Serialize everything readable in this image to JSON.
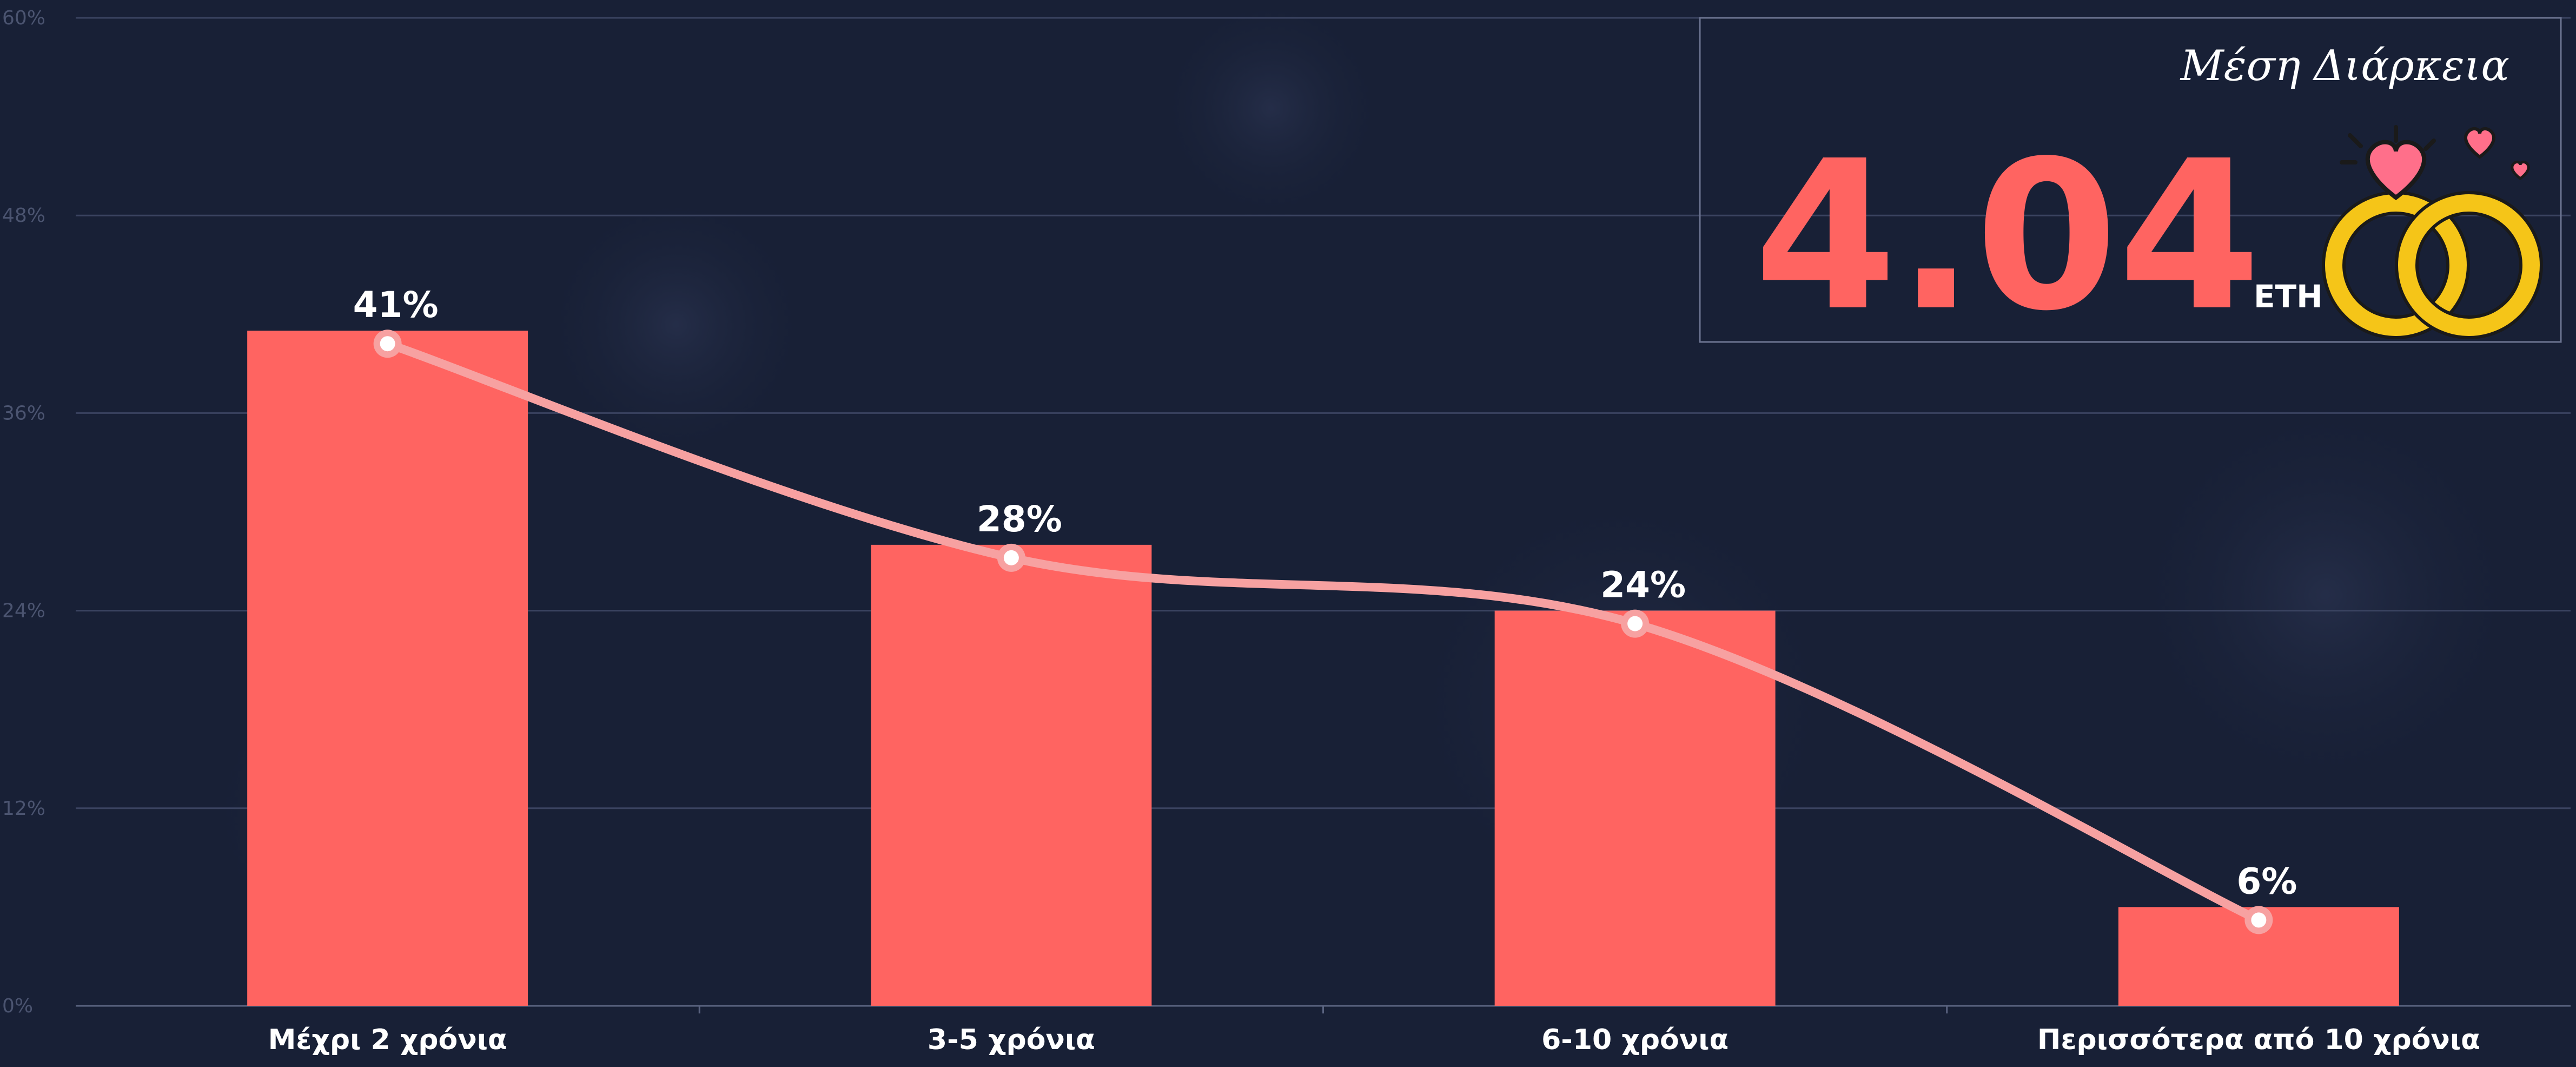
{
  "chart_data": {
    "type": "bar",
    "categories": [
      "Μέχρι 2 χρόνια",
      "3-5 χρόνια",
      "6-10 χρόνια",
      "Περισσότερα από 10 χρόνια"
    ],
    "values": [
      41,
      28,
      24,
      6
    ],
    "value_labels": [
      "41%",
      "28%",
      "24%",
      "6%"
    ],
    "color": "#ff6461",
    "line_color": "#f7a1a1",
    "ylim": [
      0,
      60
    ],
    "yticks": [
      {
        "value": 0,
        "label": "0%"
      },
      {
        "value": 12,
        "label": "12%"
      },
      {
        "value": 24,
        "label": "24%"
      },
      {
        "value": 36,
        "label": "36%"
      },
      {
        "value": 48,
        "label": "48%"
      },
      {
        "value": 60,
        "label": "60%"
      }
    ],
    "grid": true
  },
  "info_box": {
    "title": "Μέση Διάρκεια",
    "value": "4.04",
    "unit": "ETH"
  }
}
